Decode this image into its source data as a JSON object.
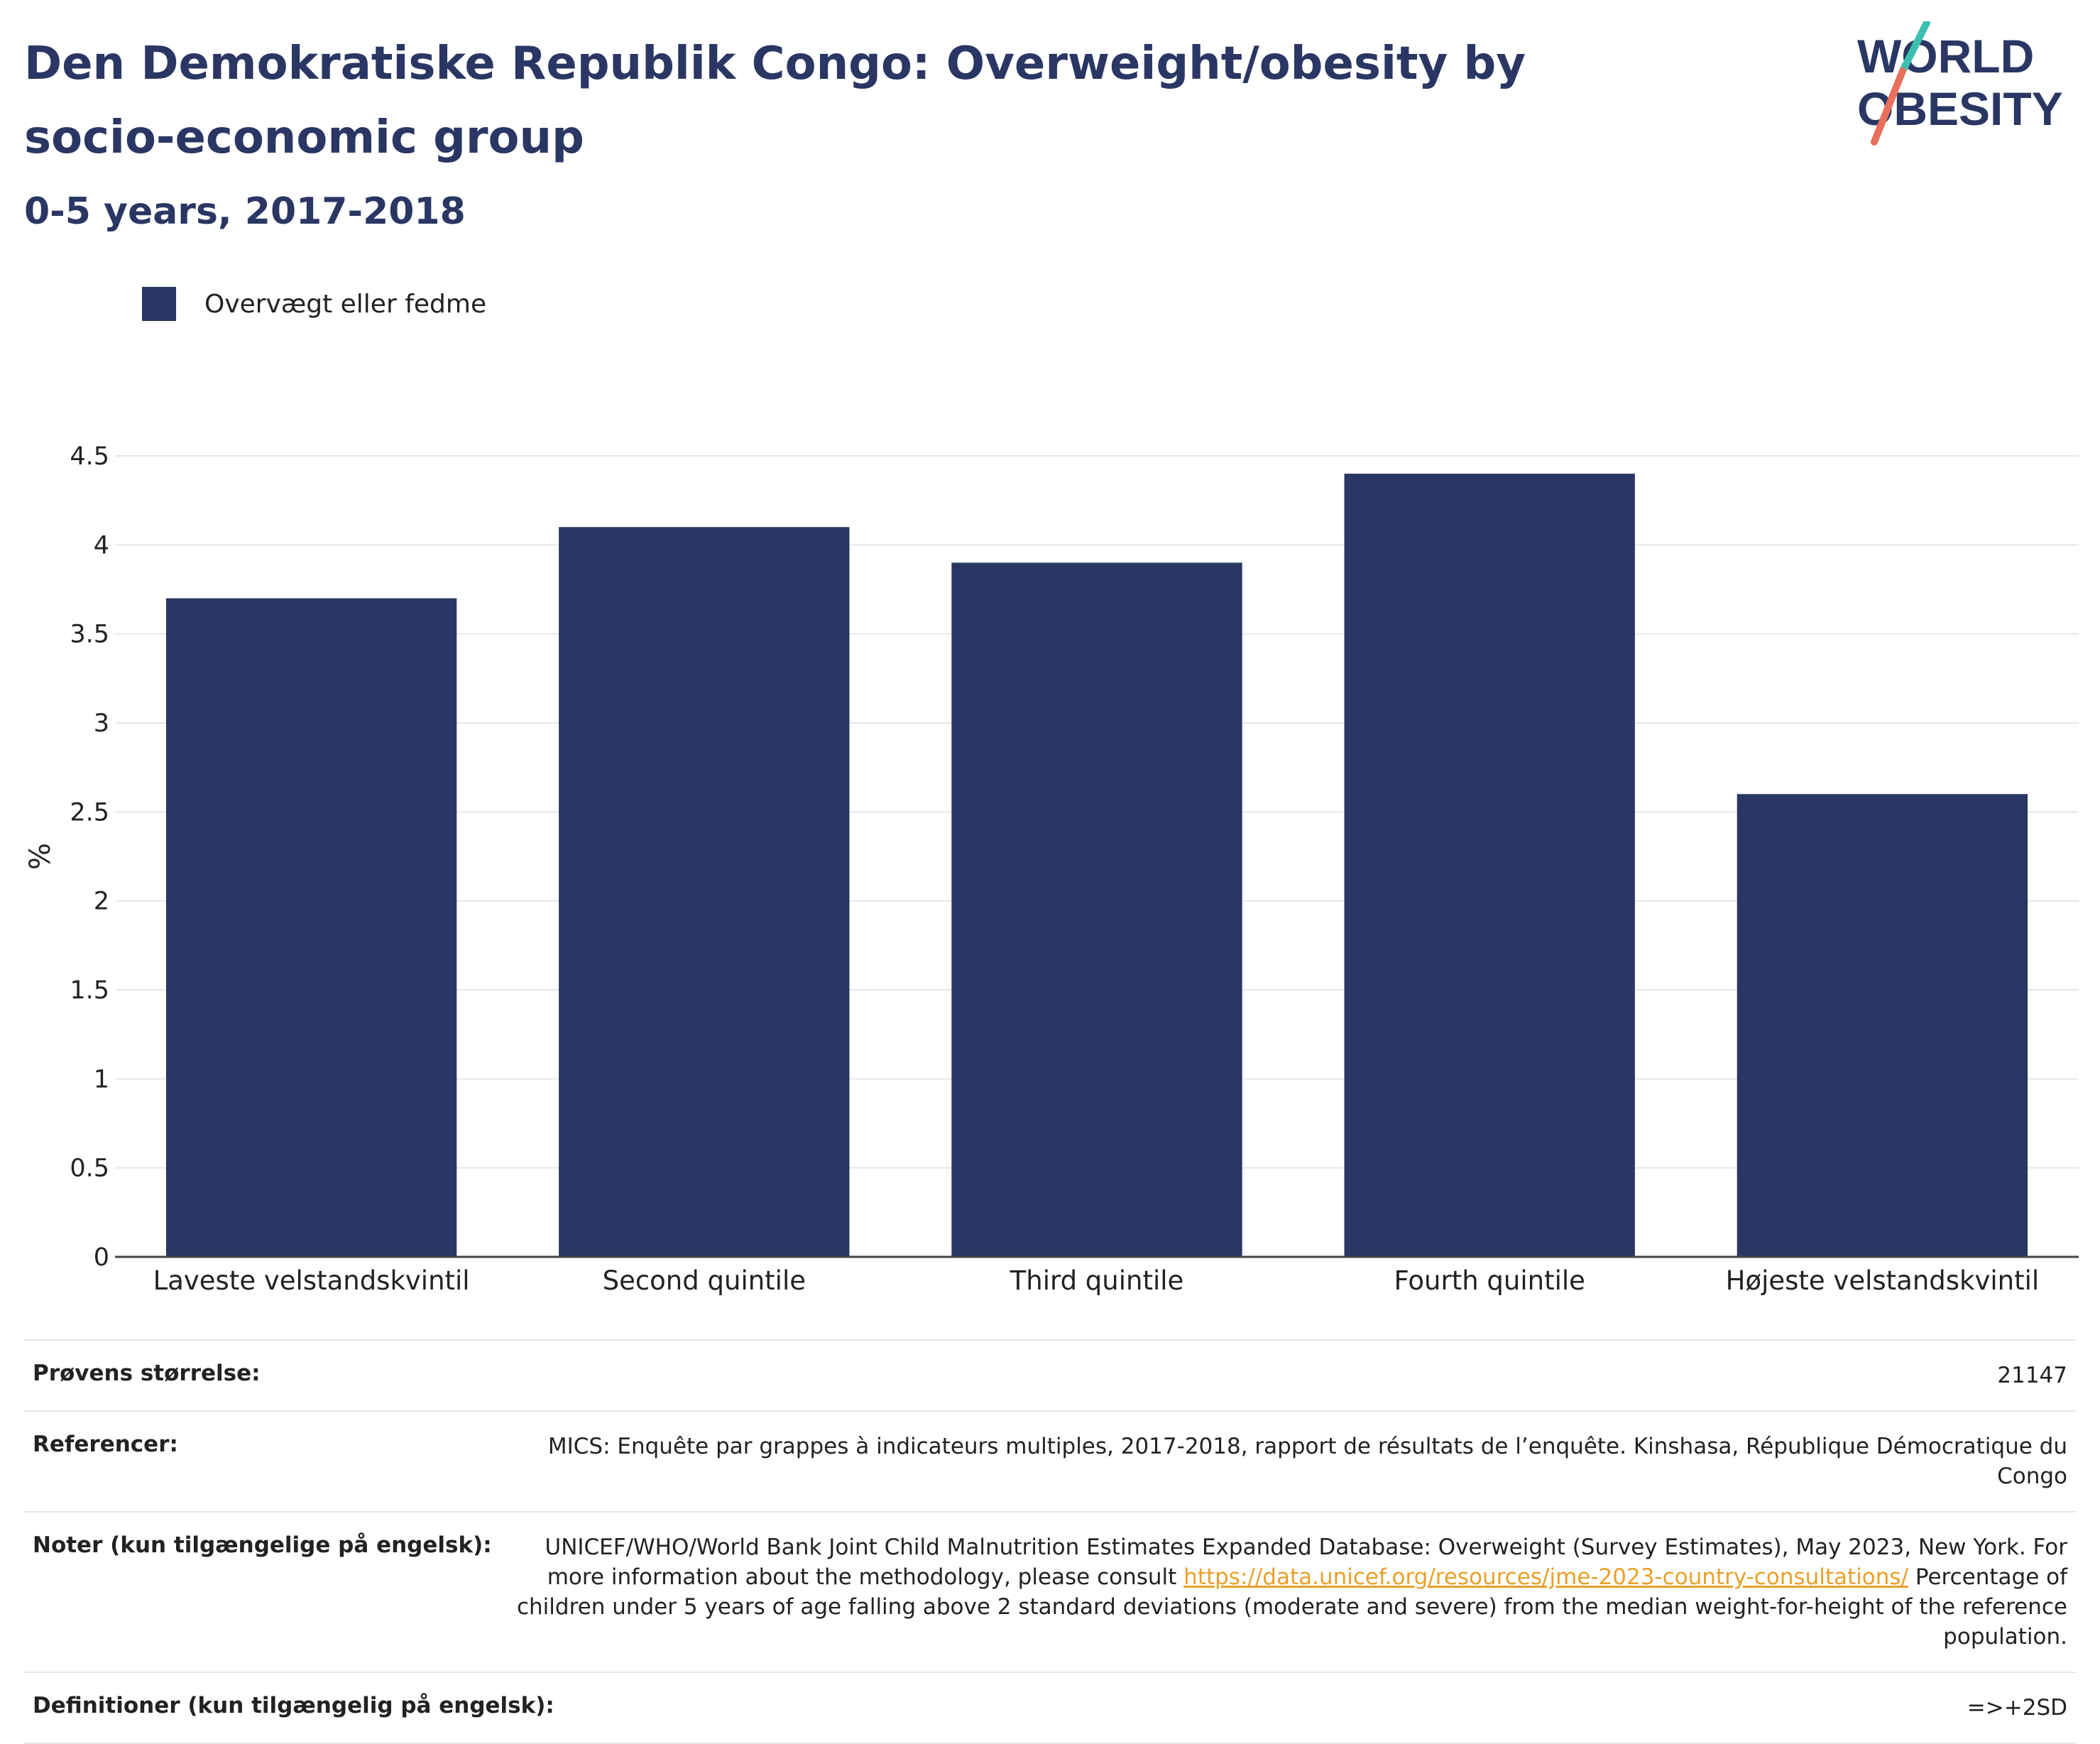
{
  "title": "Den Demokratiske Republik Congo: Overweight/obesity by socio-economic group",
  "subtitle": "0-5 years, 2017-2018",
  "logo": {
    "line1": "WORLD",
    "line2": "OBESITY"
  },
  "legend": {
    "label": "Overvægt eller fedme",
    "color": "#2a3764"
  },
  "chart_data": {
    "type": "bar",
    "categories": [
      "Laveste velstandskvintil",
      "Second quintile",
      "Third quintile",
      "Fourth quintile",
      "Højeste velstandskvintil"
    ],
    "series": [
      {
        "name": "Overvægt eller fedme",
        "values": [
          3.7,
          4.1,
          3.9,
          4.4,
          2.6
        ],
        "color": "#2a3764"
      }
    ],
    "ylabel": "%",
    "ylim": [
      0,
      4.5
    ],
    "yticks": [
      "0",
      "0.5",
      "1",
      "1.5",
      "2",
      "2.5",
      "3",
      "3.5",
      "4",
      "4.5"
    ],
    "grid": true
  },
  "footer": {
    "sample": {
      "label": "Prøvens størrelse:",
      "value": "21147"
    },
    "refs": {
      "label": "Referencer:",
      "value": "MICS: Enquête par grappes à indicateurs multiples, 2017-2018, rapport de résultats de l’enquête. Kinshasa, République Démocratique du Congo"
    },
    "notes": {
      "label": "Noter (kun tilgængelige på engelsk):",
      "text1": "UNICEF/WHO/World Bank Joint Child Malnutrition Estimates Expanded Database: Overweight (Survey Estimates), May 2023, New York. For more information about the methodology, please consult ",
      "link": "https://data.unicef.org/resources/jme-2023-country-consultations/",
      "text2": " Percentage of children under 5 years of age falling above 2 standard deviations (moderate and severe) from the median weight-for-height of the reference population."
    },
    "defs": {
      "label": "Definitioner (kun tilgængelig på engelsk):",
      "value": "=>+2SD"
    }
  }
}
